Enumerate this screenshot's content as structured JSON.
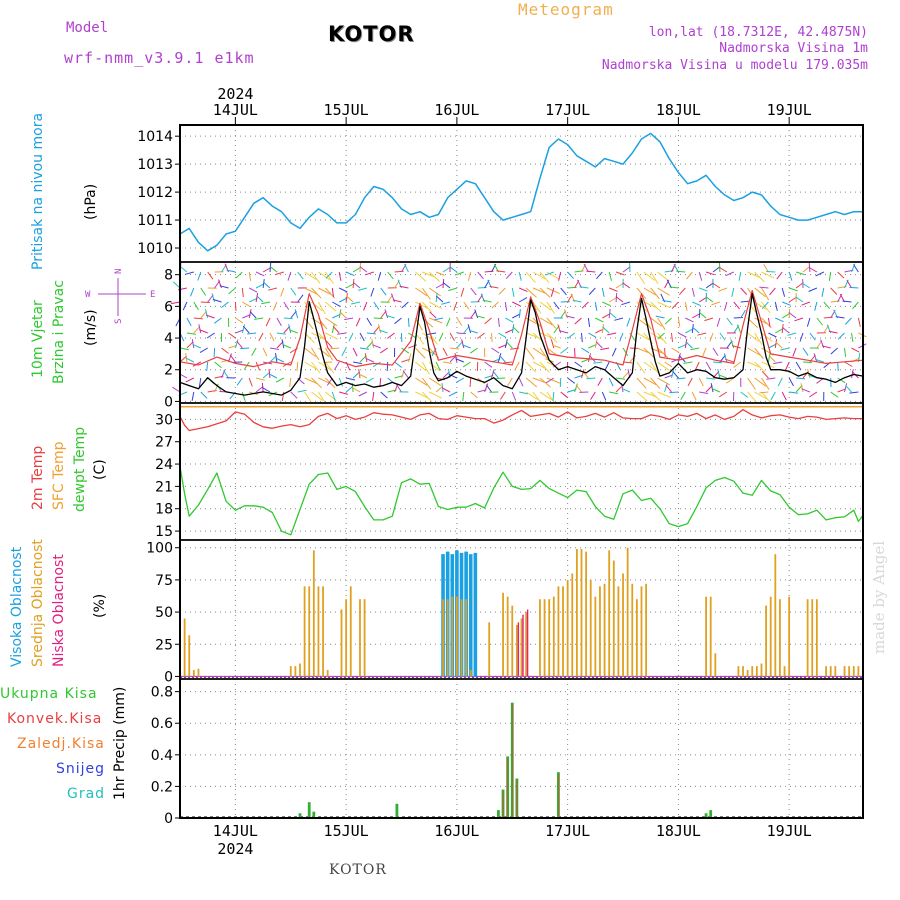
{
  "header": {
    "model_label": "Model",
    "model_name": "wrf-nmm_v3.9.1 e1km",
    "title": "KOTOR",
    "subtitle": "Meteogram",
    "lonlat": "lon,lat (18.7312E, 42.4875N)",
    "elevation": "Nadmorska Visina 1m",
    "model_elevation": "Nadmorska Visina u modelu 179.035m"
  },
  "footer": {
    "station": "KOTOR",
    "credit": "made by Angel"
  },
  "colors": {
    "pressure": "#1ba0e2",
    "temp2m": "#e84040",
    "sfc_temp": "#f0a030",
    "dewpoint": "#30c830",
    "high_cloud": "#1ba0e2",
    "mid_cloud": "#e0a020",
    "low_cloud": "#e02080",
    "total_precip": "#30b030",
    "conv_precip": "#e84040",
    "freezing_precip": "#f08030",
    "snow": "#3040e0",
    "hail": "#20c0c0",
    "wind_speed": "#000000",
    "purple": "#b040d0"
  },
  "chart_data": [
    {
      "id": "pressure",
      "type": "line",
      "x_unit": "hours since 2024-07-13 00 UTC",
      "x_labels_top": [
        "14JUL",
        "15JUL",
        "16JUL",
        "17JUL",
        "18JUL",
        "19JUL"
      ],
      "year_label": "2024",
      "ylabel_main": "Pritisak na nivou mora",
      "ylabel_unit": "(hPa)",
      "yticks": [
        1010,
        1011,
        1012,
        1013,
        1014
      ],
      "ylim": [
        1009.5,
        1014.4
      ],
      "series": [
        {
          "x": [
            12,
            14,
            16,
            18,
            20,
            22,
            24,
            26,
            28,
            30,
            32,
            34,
            36,
            38,
            40,
            42,
            44,
            46,
            48,
            50,
            52,
            54,
            56,
            58,
            60,
            62,
            64,
            66,
            68,
            70,
            72,
            74,
            76,
            78,
            80,
            82,
            84,
            86,
            88,
            90,
            92,
            94,
            96,
            98,
            100,
            102,
            104,
            106,
            108,
            110,
            112,
            114,
            116,
            118,
            120,
            122,
            124,
            126,
            128,
            130,
            132,
            134,
            136,
            138,
            140,
            142,
            144,
            146,
            148,
            150,
            152,
            154,
            156,
            158,
            160
          ],
          "values": [
            1010.5,
            1010.7,
            1010.2,
            1009.9,
            1010.1,
            1010.5,
            1010.6,
            1011.1,
            1011.6,
            1011.8,
            1011.5,
            1011.3,
            1010.9,
            1010.7,
            1011.1,
            1011.4,
            1011.2,
            1010.9,
            1010.9,
            1011.2,
            1011.8,
            1012.2,
            1012.1,
            1011.8,
            1011.4,
            1011.2,
            1011.3,
            1011.1,
            1011.2,
            1011.8,
            1012.1,
            1012.4,
            1012.3,
            1011.8,
            1011.3,
            1011.0,
            1011.1,
            1011.2,
            1011.3,
            1012.5,
            1013.6,
            1013.9,
            1013.7,
            1013.3,
            1013.1,
            1012.9,
            1013.2,
            1013.1,
            1013.0,
            1013.4,
            1013.9,
            1014.1,
            1013.8,
            1013.2,
            1012.7,
            1012.3,
            1012.4,
            1012.6,
            1012.2,
            1011.9,
            1011.7,
            1011.8,
            1012.0,
            1011.9,
            1011.5,
            1011.2,
            1011.1,
            1011.0,
            1011.0,
            1011.1,
            1011.2,
            1011.3,
            1011.2,
            1011.3,
            1011.3
          ]
        }
      ]
    },
    {
      "id": "wind",
      "type": "line",
      "ylabel_main": "10m Vjetar",
      "ylabel_sub": "Brzina i Pravac",
      "ylabel_unit": "(m/s)",
      "compass": [
        "N",
        "S",
        "W",
        "E"
      ],
      "yticks": [
        0,
        2,
        4,
        6,
        8
      ],
      "ylim": [
        -0.1,
        8.8
      ],
      "gust_windows": [
        [
          38,
          44
        ],
        [
          62,
          67
        ],
        [
          86,
          92
        ],
        [
          110,
          116
        ],
        [
          134,
          139
        ]
      ],
      "series": [
        {
          "name": "speed",
          "x": [
            12,
            14,
            16,
            18,
            20,
            22,
            24,
            26,
            28,
            30,
            32,
            34,
            36,
            38,
            39,
            40,
            41,
            42,
            43,
            44,
            46,
            48,
            50,
            52,
            54,
            56,
            58,
            60,
            62,
            63,
            64,
            65,
            66,
            67,
            68,
            70,
            72,
            74,
            76,
            78,
            80,
            82,
            84,
            86,
            87,
            88,
            89,
            90,
            92,
            94,
            96,
            98,
            100,
            102,
            104,
            106,
            108,
            110,
            111,
            112,
            113,
            114,
            115,
            116,
            118,
            120,
            122,
            124,
            126,
            128,
            130,
            132,
            134,
            135,
            136,
            137,
            138,
            139,
            140,
            142,
            144,
            146,
            148,
            150,
            152,
            154,
            156,
            158,
            160
          ],
          "values": [
            1.2,
            1.0,
            0.8,
            1.5,
            1.0,
            0.6,
            0.5,
            0.4,
            0.5,
            0.6,
            0.5,
            0.4,
            0.7,
            1.5,
            3.5,
            6.3,
            5.2,
            4.0,
            2.8,
            1.8,
            1.0,
            1.2,
            1.0,
            1.1,
            0.9,
            1.0,
            1.2,
            1.0,
            1.6,
            3.8,
            6.0,
            5.0,
            3.2,
            1.8,
            1.3,
            1.5,
            1.9,
            1.6,
            1.4,
            1.2,
            1.5,
            1.0,
            0.8,
            1.8,
            4.0,
            6.4,
            5.6,
            4.2,
            2.6,
            2.0,
            2.2,
            2.0,
            1.8,
            2.2,
            2.0,
            1.5,
            1.0,
            1.8,
            4.5,
            6.5,
            5.2,
            3.8,
            2.5,
            1.6,
            1.8,
            2.4,
            1.8,
            2.0,
            1.9,
            1.5,
            1.4,
            1.5,
            2.0,
            4.6,
            6.8,
            5.5,
            4.3,
            2.8,
            2.0,
            2.0,
            1.9,
            1.6,
            1.8,
            1.5,
            1.4,
            1.2,
            1.5,
            1.7,
            1.6
          ]
        },
        {
          "name": "gust",
          "x": [
            12,
            16,
            20,
            24,
            28,
            32,
            36,
            38,
            40,
            42,
            44,
            46,
            50,
            54,
            58,
            62,
            64,
            66,
            68,
            72,
            76,
            80,
            84,
            86,
            88,
            90,
            92,
            96,
            100,
            104,
            108,
            110,
            112,
            114,
            116,
            120,
            124,
            128,
            132,
            134,
            136,
            138,
            140,
            144,
            148,
            152,
            156,
            160
          ],
          "values": [
            2.5,
            2.3,
            2.8,
            2.4,
            2.2,
            2.5,
            2.3,
            4.0,
            6.8,
            5.5,
            3.4,
            2.6,
            2.2,
            2.4,
            2.3,
            3.8,
            6.2,
            4.5,
            2.6,
            2.9,
            2.7,
            2.5,
            2.3,
            4.2,
            6.6,
            5.0,
            3.0,
            2.8,
            2.7,
            2.6,
            2.3,
            4.5,
            6.8,
            5.2,
            2.8,
            2.6,
            2.9,
            2.6,
            2.4,
            4.8,
            7.0,
            5.0,
            3.0,
            2.8,
            2.6,
            2.4,
            2.5,
            2.6
          ]
        }
      ]
    },
    {
      "id": "temperature",
      "type": "line",
      "ylabel_2m": "2m Temp",
      "ylabel_sfc": "SFC Temp",
      "ylabel_dew": "dewpt Temp",
      "ylabel_unit": "(C)",
      "yticks": [
        15,
        18,
        21,
        24,
        27,
        30
      ],
      "ylim": [
        13.8,
        32.2
      ],
      "series": [
        {
          "name": "2m",
          "x": [
            12,
            13,
            14,
            18,
            22,
            24,
            26,
            28,
            30,
            32,
            34,
            36,
            38,
            40,
            42,
            44,
            46,
            48,
            50,
            52,
            54,
            56,
            58,
            60,
            62,
            64,
            66,
            68,
            70,
            72,
            74,
            76,
            78,
            80,
            82,
            84,
            86,
            88,
            90,
            92,
            94,
            96,
            98,
            100,
            102,
            104,
            106,
            108,
            110,
            112,
            114,
            116,
            118,
            120,
            122,
            124,
            126,
            128,
            130,
            132,
            134,
            136,
            138,
            140,
            142,
            144,
            146,
            148,
            150,
            152,
            154,
            156,
            158,
            160
          ],
          "values": [
            30.4,
            29.2,
            28.5,
            29.0,
            29.8,
            31.0,
            30.7,
            29.6,
            29.0,
            28.8,
            29.1,
            29.3,
            29.0,
            29.3,
            30.4,
            30.8,
            30.1,
            30.5,
            30.0,
            30.3,
            30.9,
            30.7,
            30.6,
            30.3,
            30.0,
            30.6,
            30.8,
            30.1,
            30.0,
            30.5,
            30.3,
            30.1,
            30.1,
            29.5,
            29.9,
            30.6,
            31.2,
            30.4,
            30.6,
            30.8,
            30.3,
            31.0,
            30.2,
            30.4,
            30.8,
            30.3,
            30.9,
            30.2,
            30.1,
            30.1,
            30.6,
            30.4,
            30.0,
            30.6,
            30.4,
            30.8,
            30.1,
            30.6,
            30.0,
            30.4,
            31.3,
            30.6,
            30.2,
            30.5,
            30.6,
            30.3,
            30.1,
            30.4,
            30.3,
            30.0,
            30.1,
            30.2,
            30.1,
            30.1
          ]
        },
        {
          "name": "sfc",
          "x": [
            12,
            160
          ],
          "values": [
            31.7,
            31.7
          ]
        },
        {
          "name": "dewpoint",
          "x": [
            12,
            13,
            14,
            16,
            18,
            20,
            22,
            24,
            26,
            28,
            30,
            32,
            34,
            36,
            38,
            40,
            42,
            44,
            46,
            48,
            50,
            52,
            54,
            56,
            58,
            60,
            62,
            64,
            66,
            68,
            70,
            72,
            74,
            76,
            78,
            80,
            82,
            84,
            86,
            88,
            90,
            92,
            94,
            96,
            98,
            100,
            102,
            104,
            106,
            108,
            110,
            112,
            114,
            116,
            118,
            120,
            122,
            124,
            126,
            128,
            130,
            132,
            134,
            136,
            138,
            140,
            142,
            144,
            146,
            148,
            150,
            152,
            154,
            156,
            158,
            159,
            160
          ],
          "values": [
            23.7,
            20.0,
            17.0,
            18.5,
            20.6,
            22.8,
            19.0,
            17.8,
            18.4,
            18.4,
            18.2,
            17.5,
            15.0,
            14.5,
            17.9,
            21.3,
            22.6,
            22.8,
            20.6,
            21.0,
            20.3,
            18.3,
            16.5,
            16.5,
            17.0,
            21.5,
            22.0,
            21.3,
            21.4,
            18.3,
            17.9,
            18.2,
            18.2,
            18.7,
            18.1,
            20.8,
            22.9,
            21.0,
            20.6,
            20.7,
            21.8,
            20.7,
            20.1,
            19.5,
            20.5,
            20.3,
            18.3,
            17.0,
            16.6,
            20.0,
            20.5,
            19.1,
            19.4,
            18.0,
            16.0,
            15.6,
            16.0,
            18.3,
            20.8,
            21.8,
            22.2,
            21.7,
            20.1,
            19.8,
            21.8,
            20.4,
            19.9,
            18.2,
            17.2,
            17.3,
            17.8,
            16.5,
            16.8,
            16.9,
            17.8,
            16.3,
            17.1
          ]
        }
      ]
    },
    {
      "id": "clouds",
      "type": "bar",
      "ylabel_high": "Visoka Oblacnost",
      "ylabel_mid": "Srednja Oblacnost",
      "ylabel_low": "Niska Oblacnost",
      "ylabel_unit": "(%)",
      "yticks": [
        0,
        25,
        50,
        75,
        100
      ],
      "ylim": [
        -2,
        106
      ],
      "high_x": [
        69,
        70,
        71,
        72,
        73,
        74,
        75,
        76
      ],
      "high_values": [
        95,
        97,
        95,
        98,
        96,
        97,
        95,
        96
      ],
      "mid_x": [
        13,
        14,
        15,
        16,
        17,
        18,
        36,
        37,
        38,
        39,
        40,
        41,
        42,
        43,
        44,
        47,
        48,
        49,
        51,
        52,
        69,
        70,
        71,
        72,
        73,
        74,
        75,
        76,
        79,
        82,
        83,
        84,
        85,
        86,
        87,
        90,
        91,
        92,
        93,
        94,
        95,
        96,
        97,
        98,
        99,
        100,
        101,
        102,
        103,
        104,
        105,
        106,
        107,
        108,
        109,
        110,
        111,
        112,
        113,
        126,
        127,
        128,
        133,
        134,
        135,
        136,
        137,
        138,
        139,
        140,
        141,
        142,
        143,
        144,
        148,
        149,
        150,
        152,
        153,
        154,
        156,
        157,
        158,
        159,
        160
      ],
      "mid_values": [
        45,
        32,
        5,
        6,
        0,
        0,
        8,
        8,
        10,
        70,
        70,
        98,
        70,
        70,
        5,
        52,
        60,
        70,
        60,
        60,
        60,
        60,
        62,
        62,
        60,
        60,
        5,
        0,
        42,
        65,
        62,
        55,
        40,
        45,
        50,
        60,
        60,
        60,
        62,
        70,
        70,
        75,
        80,
        99,
        99,
        97,
        75,
        62,
        70,
        72,
        98,
        90,
        70,
        80,
        100,
        72,
        60,
        70,
        72,
        62,
        62,
        18,
        8,
        8,
        5,
        8,
        8,
        10,
        55,
        62,
        95,
        60,
        8,
        62,
        60,
        60,
        60,
        8,
        8,
        8,
        8,
        8,
        8,
        8,
        8
      ],
      "low_x": [
        85,
        86,
        87
      ],
      "low_values": [
        42,
        48,
        52
      ]
    },
    {
      "id": "precip",
      "type": "bar",
      "ylabel_total": "Ukupna Kisa",
      "ylabel_conv": "Konvek.Kisa",
      "ylabel_freez": "Zaledj.Kisa",
      "ylabel_snow": "Snijeg",
      "ylabel_hail": "Grad",
      "ylabel_unit": "1hr Precip (mm)",
      "x_labels_bottom": [
        "14JUL",
        "15JUL",
        "16JUL",
        "17JUL",
        "18JUL",
        "19JUL"
      ],
      "year_label": "2024",
      "yticks": [
        0,
        0.2,
        0.4,
        0.6,
        0.8
      ],
      "ylim": [
        0,
        0.88
      ],
      "x": [
        38,
        40,
        41,
        59,
        81,
        82,
        83,
        84,
        85,
        94,
        126,
        127
      ],
      "values": [
        0.03,
        0.1,
        0.04,
        0.09,
        0.05,
        0.18,
        0.39,
        0.73,
        0.25,
        0.29,
        0.03,
        0.05
      ]
    }
  ]
}
